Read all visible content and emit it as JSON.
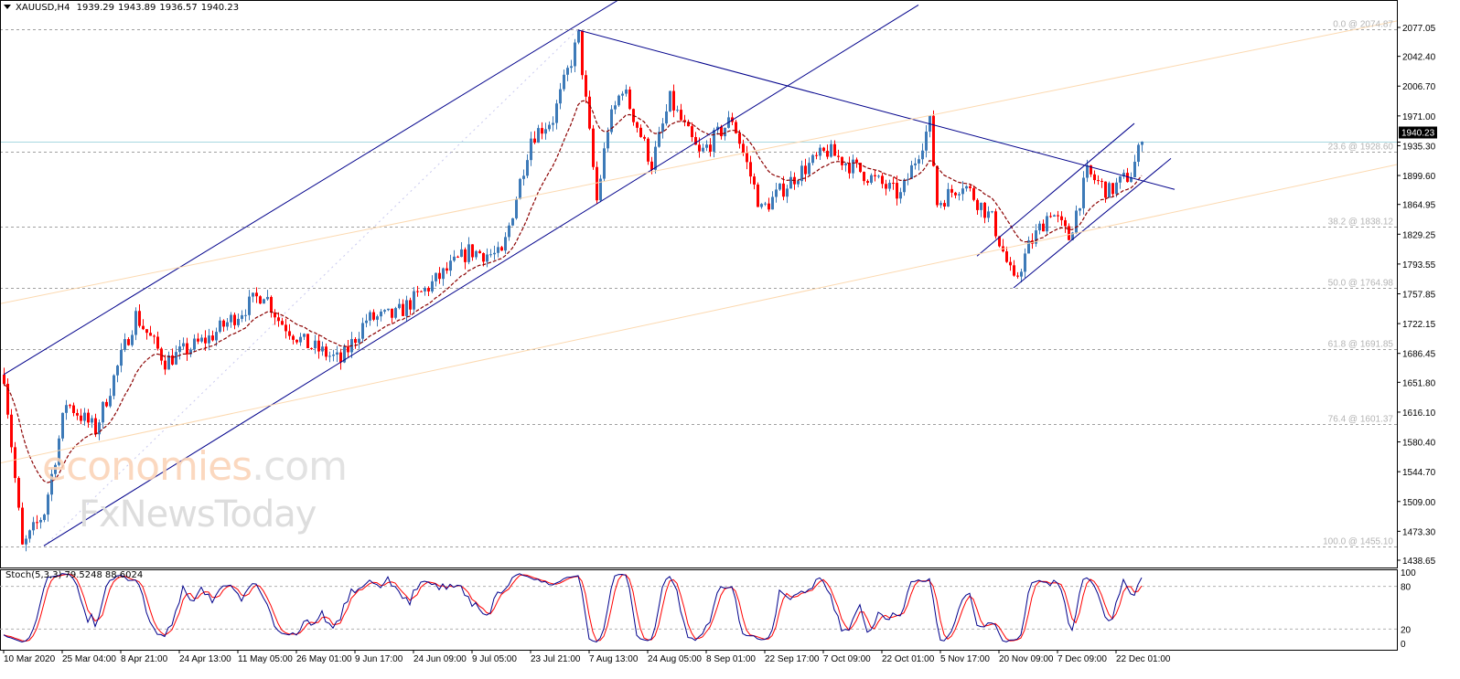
{
  "header": {
    "symbol": "XAUUSD,H4",
    "open": "1939.29",
    "high": "1943.89",
    "low": "1936.57",
    "close": "1940.23"
  },
  "stoch": {
    "label": "Stoch(5,3,3)",
    "main": "79.5248",
    "signal": "88.6024",
    "levels": [
      "100",
      "80",
      "20",
      "0"
    ]
  },
  "watermark": {
    "line1": "economies",
    "line1b": ".com",
    "line2": "FxNewsToday"
  },
  "colors": {
    "bull": "#3d7ab8",
    "bear": "#ff0000",
    "ma": "#8b0000",
    "trend": "#00008b",
    "fibchannel": "#fcd9b0",
    "fib": "#a0a0a0",
    "stoch_main": "#00008b",
    "stoch_signal": "#ff0000",
    "bid_line": "#a8d8e0"
  },
  "chart_data": {
    "type": "candlestick",
    "title": "XAUUSD,H4",
    "ylim": [
      1438.65,
      2077.05
    ],
    "y_ticks": [
      "2077.05",
      "2042.40",
      "2006.70",
      "1971.00",
      "1935.30",
      "1899.60",
      "1864.95",
      "1829.25",
      "1793.55",
      "1757.85",
      "1722.15",
      "1686.45",
      "1651.80",
      "1616.10",
      "1580.40",
      "1544.70",
      "1509.00",
      "1473.30",
      "1438.65"
    ],
    "current_price": "1940.23",
    "x_ticks": [
      "10 Mar 2020",
      "25 Mar 04:00",
      "8 Apr 21:00",
      "24 Apr 13:00",
      "11 May 05:00",
      "26 May 01:00",
      "9 Jun 17:00",
      "24 Jun 09:00",
      "9 Jul 05:00",
      "23 Jul 21:00",
      "7 Aug 13:00",
      "24 Aug 05:00",
      "8 Sep 01:00",
      "22 Sep 17:00",
      "7 Oct 09:00",
      "22 Oct 01:00",
      "5 Nov 17:00",
      "20 Nov 09:00",
      "7 Dec 09:00",
      "22 Dec 01:00"
    ],
    "bars": 312,
    "price_path": [
      [
        0,
        1661
      ],
      [
        5,
        1453
      ],
      [
        11,
        1497
      ],
      [
        17,
        1628
      ],
      [
        25,
        1595
      ],
      [
        36,
        1732
      ],
      [
        44,
        1677
      ],
      [
        56,
        1705
      ],
      [
        71,
        1760
      ],
      [
        75,
        1727
      ],
      [
        82,
        1699
      ],
      [
        92,
        1677
      ],
      [
        99,
        1727
      ],
      [
        107,
        1732
      ],
      [
        117,
        1770
      ],
      [
        127,
        1809
      ],
      [
        136,
        1803
      ],
      [
        144,
        1946
      ],
      [
        150,
        1968
      ],
      [
        157,
        2066
      ],
      [
        162,
        1869
      ],
      [
        165,
        1957
      ],
      [
        169,
        2006
      ],
      [
        177,
        1913
      ],
      [
        182,
        1990
      ],
      [
        190,
        1924
      ],
      [
        199,
        1968
      ],
      [
        207,
        1858
      ],
      [
        217,
        1902
      ],
      [
        225,
        1929
      ],
      [
        235,
        1902
      ],
      [
        245,
        1875
      ],
      [
        253,
        1962
      ],
      [
        255,
        1866
      ],
      [
        262,
        1891
      ],
      [
        270,
        1847
      ],
      [
        276,
        1770
      ],
      [
        280,
        1814
      ],
      [
        286,
        1858
      ],
      [
        291,
        1825
      ],
      [
        296,
        1902
      ],
      [
        302,
        1880
      ],
      [
        308,
        1902
      ],
      [
        311,
        1940
      ]
    ],
    "moving_average": "dashed",
    "fibonacci": [
      {
        "label": "0.0 @ 2074.87",
        "price": 2074.87
      },
      {
        "label": "23.6 @ 1928.60",
        "price": 1928.6
      },
      {
        "label": "38.2 @ 1838.12",
        "price": 1838.12
      },
      {
        "label": "50.0 @ 1764.98",
        "price": 1764.98
      },
      {
        "label": "61.8 @ 1691.85",
        "price": 1691.85
      },
      {
        "label": "76.4 @ 1601.37",
        "price": 1601.37
      },
      {
        "label": "100.0 @ 1455.10",
        "price": 1455.1
      }
    ],
    "trendlines": [
      {
        "name": "upper-channel",
        "from": [
          0,
          1661
        ],
        "to": [
          168,
          2110
        ],
        "style": "trend"
      },
      {
        "name": "lower-channel",
        "from": [
          11,
          1456
        ],
        "to": [
          250,
          2104
        ],
        "style": "trend"
      },
      {
        "name": "downtrend",
        "from": [
          157,
          2074
        ],
        "to": [
          320,
          1883
        ],
        "style": "trend"
      },
      {
        "name": "small-channel-upper",
        "from": [
          266,
          1803
        ],
        "to": [
          309,
          1962
        ],
        "style": "trend"
      },
      {
        "name": "small-channel-lower",
        "from": [
          276,
          1765
        ],
        "to": [
          319,
          1920
        ],
        "style": "trend"
      },
      {
        "name": "fib-channel-top",
        "from": [
          -1,
          1746
        ],
        "to": [
          381,
          2085
        ],
        "style": "fibchannel"
      },
      {
        "name": "fib-channel-bottom",
        "from": [
          -1,
          1555
        ],
        "to": [
          381,
          1913
        ],
        "style": "fibchannel"
      }
    ],
    "stoch_ylim": [
      0,
      100
    ]
  }
}
